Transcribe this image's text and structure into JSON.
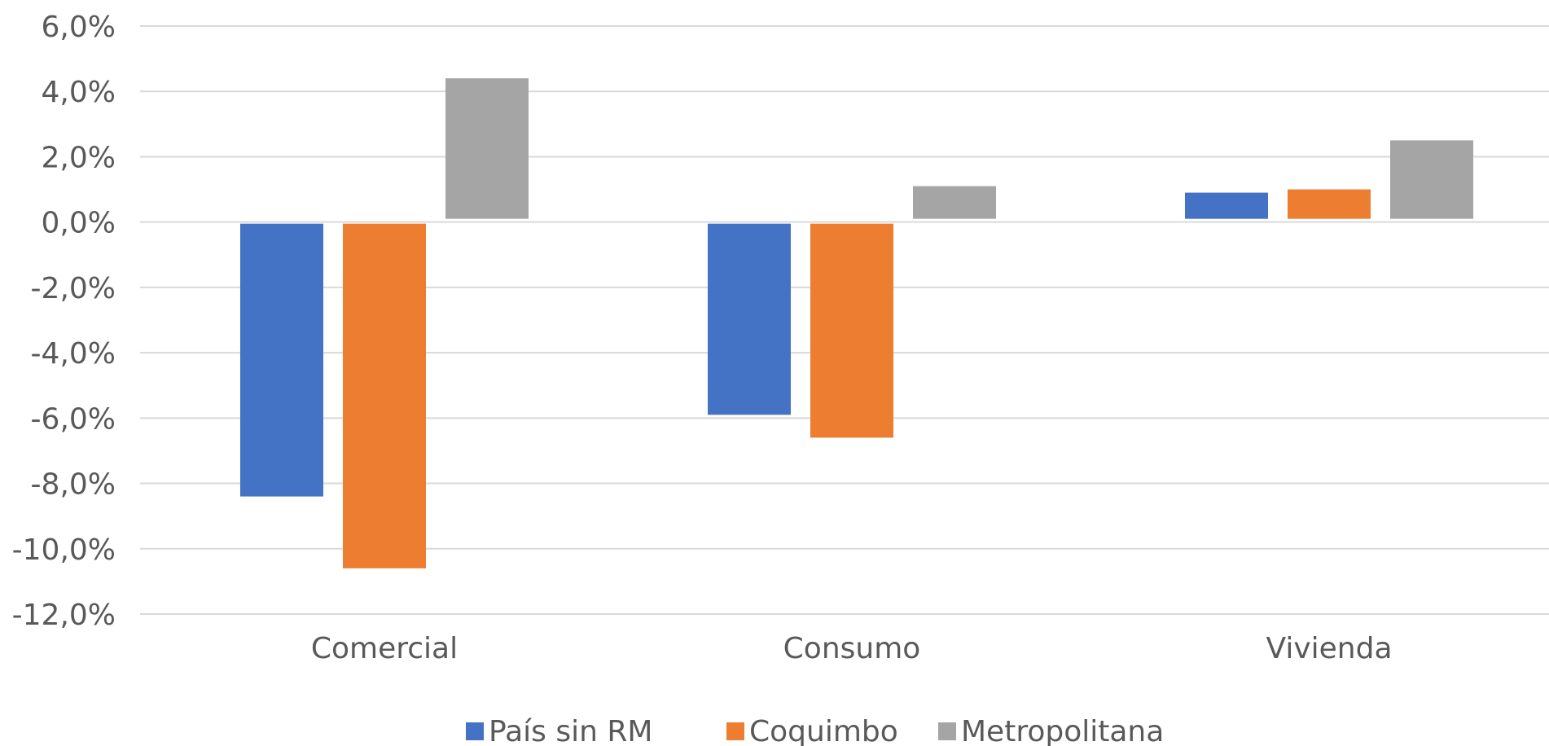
{
  "chart_data": {
    "type": "bar",
    "title": "",
    "xlabel": "",
    "ylabel": "",
    "categories": [
      "Comercial",
      "Consumo",
      "Vivienda"
    ],
    "series": [
      {
        "name": "País sin RM",
        "color": "#4472c4",
        "values": [
          -8.4,
          -5.9,
          0.9
        ]
      },
      {
        "name": "Coquimbo",
        "color": "#ed7d31",
        "values": [
          -10.6,
          -6.6,
          1.0
        ]
      },
      {
        "name": "Metropolitana",
        "color": "#a5a5a5",
        "values": [
          4.4,
          1.1,
          2.5
        ]
      }
    ],
    "ylim": [
      -12,
      6
    ],
    "yticks": [
      6,
      4,
      2,
      0,
      -2,
      -4,
      -6,
      -8,
      -10,
      -12
    ],
    "ytick_labels": [
      "6,0%",
      "4,0%",
      "2,0%",
      "0,0%",
      "-2,0%",
      "-4,0%",
      "-6,0%",
      "-8,0%",
      "-10,0%",
      "-12,0%"
    ],
    "grid": true,
    "legend_position": "bottom"
  }
}
